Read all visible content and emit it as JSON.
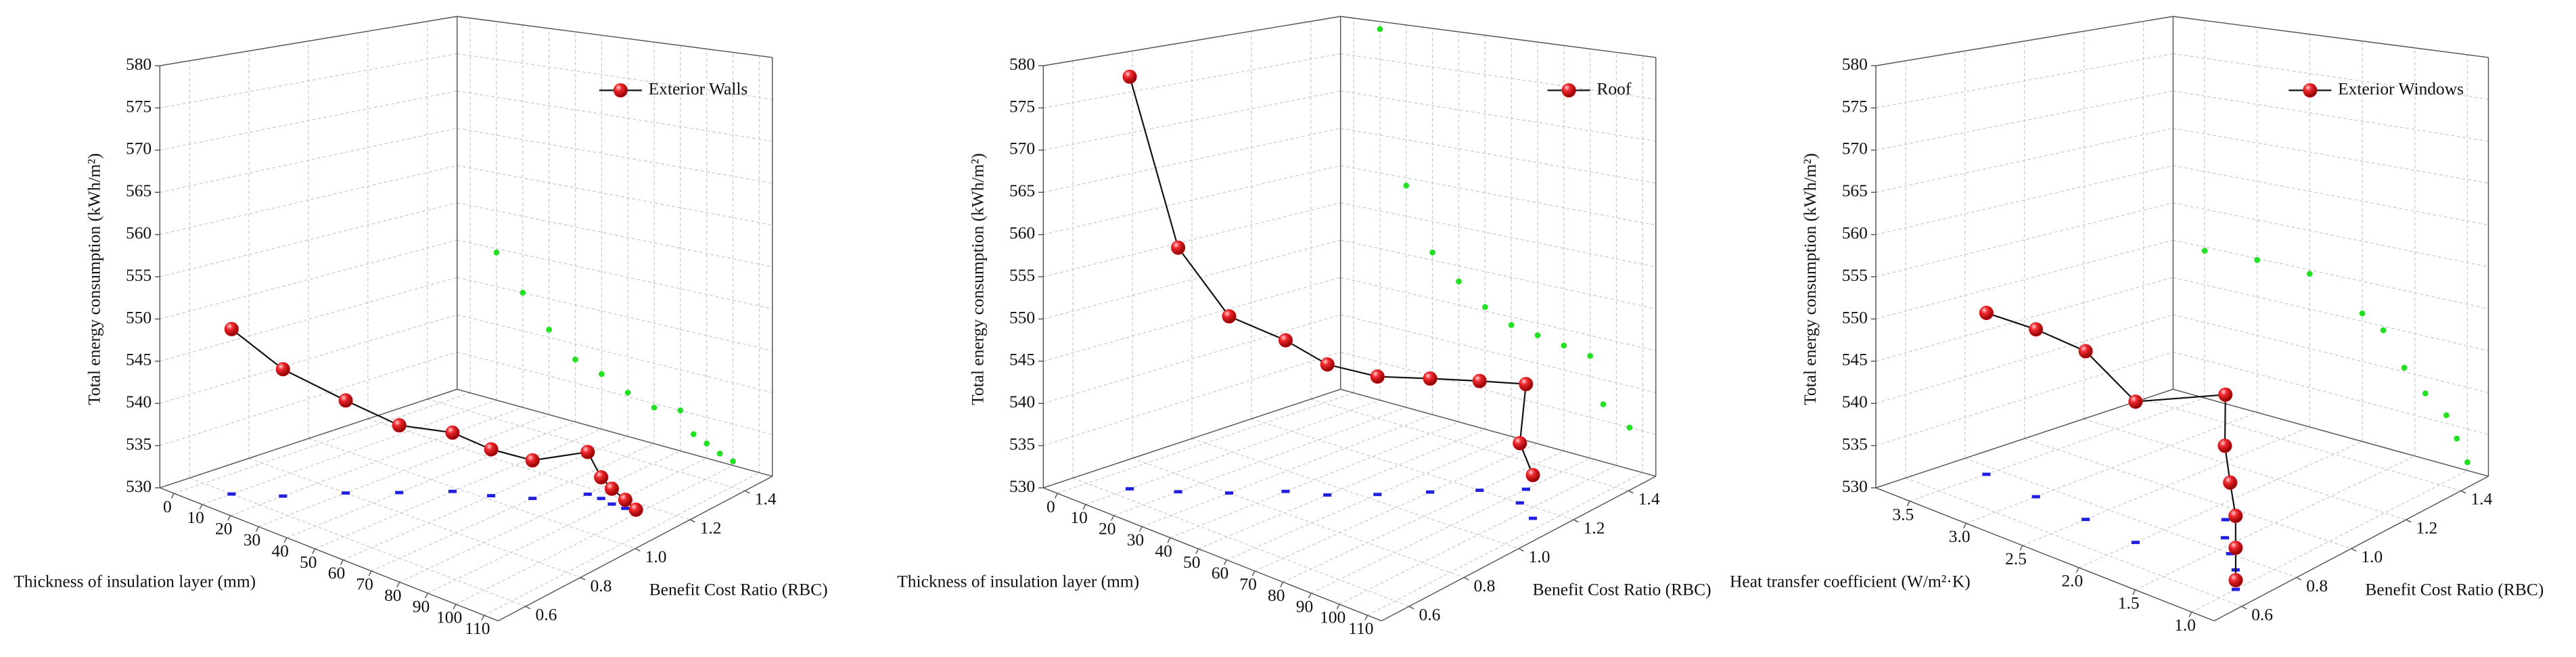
{
  "chart_data": [
    {
      "type": "line3d",
      "xlabel": "Thickness of insulation layer (mm)",
      "ylabel": "Benefit Cost Ratio (RBC)",
      "zlabel": "Total energy consumption (kWh/m²)",
      "xlim": [
        -5,
        115
      ],
      "xticks": [
        0,
        10,
        20,
        30,
        40,
        50,
        60,
        70,
        80,
        90,
        100,
        110
      ],
      "ylim": [
        0.5,
        1.5
      ],
      "yticks": [
        0.6,
        0.8,
        {
          "value": 1,
          "label": "1.0"
        },
        1.2,
        1.4
      ],
      "zlim": [
        530,
        580
      ],
      "zticks": [
        530,
        535,
        540,
        545,
        550,
        555,
        560,
        565,
        570,
        575,
        580
      ],
      "grid": true,
      "legend": "upper right",
      "wall_projection_color": "#22e022",
      "floor_projection_color": "#1f1fe0",
      "series": [
        {
          "name": "Exterior Walls",
          "color": "#e3141b",
          "x": [
            10,
            20,
            30,
            40,
            50,
            60,
            70,
            80,
            85,
            90,
            95,
            100
          ],
          "y": [
            0.6,
            0.68,
            0.8,
            0.89,
            0.98,
            1.02,
            1.07,
            1.17,
            1.17,
            1.16,
            1.16,
            1.15
          ],
          "z": [
            549.5,
            545,
            541,
            538,
            537,
            535.5,
            534.5,
            535,
            532.5,
            531.8,
            531,
            530.5
          ]
        }
      ]
    },
    {
      "type": "line3d",
      "xlabel": "Thickness of insulation layer (mm)",
      "ylabel": "Benefit Cost Ratio (RBC)",
      "zlabel": "Total energy consumption (kWh/m²)",
      "xlim": [
        -5,
        115
      ],
      "xticks": [
        0,
        10,
        20,
        30,
        40,
        50,
        60,
        70,
        80,
        90,
        100,
        110
      ],
      "ylim": [
        0.5,
        1.5
      ],
      "yticks": [
        0.6,
        0.8,
        {
          "value": 1,
          "label": "1.0"
        },
        1.2,
        1.4
      ],
      "zlim": [
        530,
        580
      ],
      "zticks": [
        530,
        535,
        540,
        545,
        550,
        555,
        560,
        565,
        570,
        575,
        580
      ],
      "grid": true,
      "legend": "upper right",
      "wall_projection_color": "#22e022",
      "floor_projection_color": "#1f1fe0",
      "series": [
        {
          "name": "Roof",
          "color": "#e3141b",
          "x": [
            10,
            20,
            30,
            40,
            50,
            60,
            70,
            80,
            90,
            95,
            105
          ],
          "y": [
            0.65,
            0.72,
            0.8,
            0.9,
            0.95,
            1.03,
            1.12,
            1.2,
            1.27,
            1.2,
            1.15
          ],
          "z": [
            579,
            559,
            551,
            548,
            545.5,
            544,
            543.5,
            543,
            542.5,
            537,
            535
          ]
        }
      ]
    },
    {
      "type": "line3d",
      "xlabel": "Heat transfer coefficient (W/m²·K)",
      "ylabel": "Benefit Cost Ratio (RBC)",
      "zlabel": "Total energy consumption (kWh/m²)",
      "xlim": [
        3.8,
        0.8
      ],
      "xticks": [
        3.5,
        {
          "value": 3,
          "label": "3.0"
        },
        2.5,
        {
          "value": 2,
          "label": "2.0"
        },
        1.5,
        {
          "value": 1,
          "label": "1.0"
        }
      ],
      "ylim": [
        0.5,
        1.5
      ],
      "yticks": [
        0.6,
        0.8,
        {
          "value": 1,
          "label": "1.0"
        },
        1.2,
        1.4
      ],
      "zlim": [
        530,
        580
      ],
      "zticks": [
        530,
        535,
        540,
        545,
        550,
        555,
        560,
        565,
        570,
        575,
        580
      ],
      "grid": true,
      "legend": "upper right",
      "wall_projection_color": "#22e022",
      "floor_projection_color": "#1f1fe0",
      "series": [
        {
          "name": "Exterior Windows",
          "color": "#e3141b",
          "x": [
            3.5,
            3.0,
            2.5,
            2.0,
            1.8,
            1.6,
            1.4,
            1.2,
            1.1,
            1.0
          ],
          "y": [
            0.76,
            0.74,
            0.72,
            0.7,
            0.94,
            0.86,
            0.8,
            0.74,
            0.7,
            0.66
          ],
          "z": [
            549.5,
            549.8,
            549.5,
            546,
            544.5,
            540.5,
            538,
            536,
            533.5,
            531
          ]
        }
      ]
    }
  ]
}
